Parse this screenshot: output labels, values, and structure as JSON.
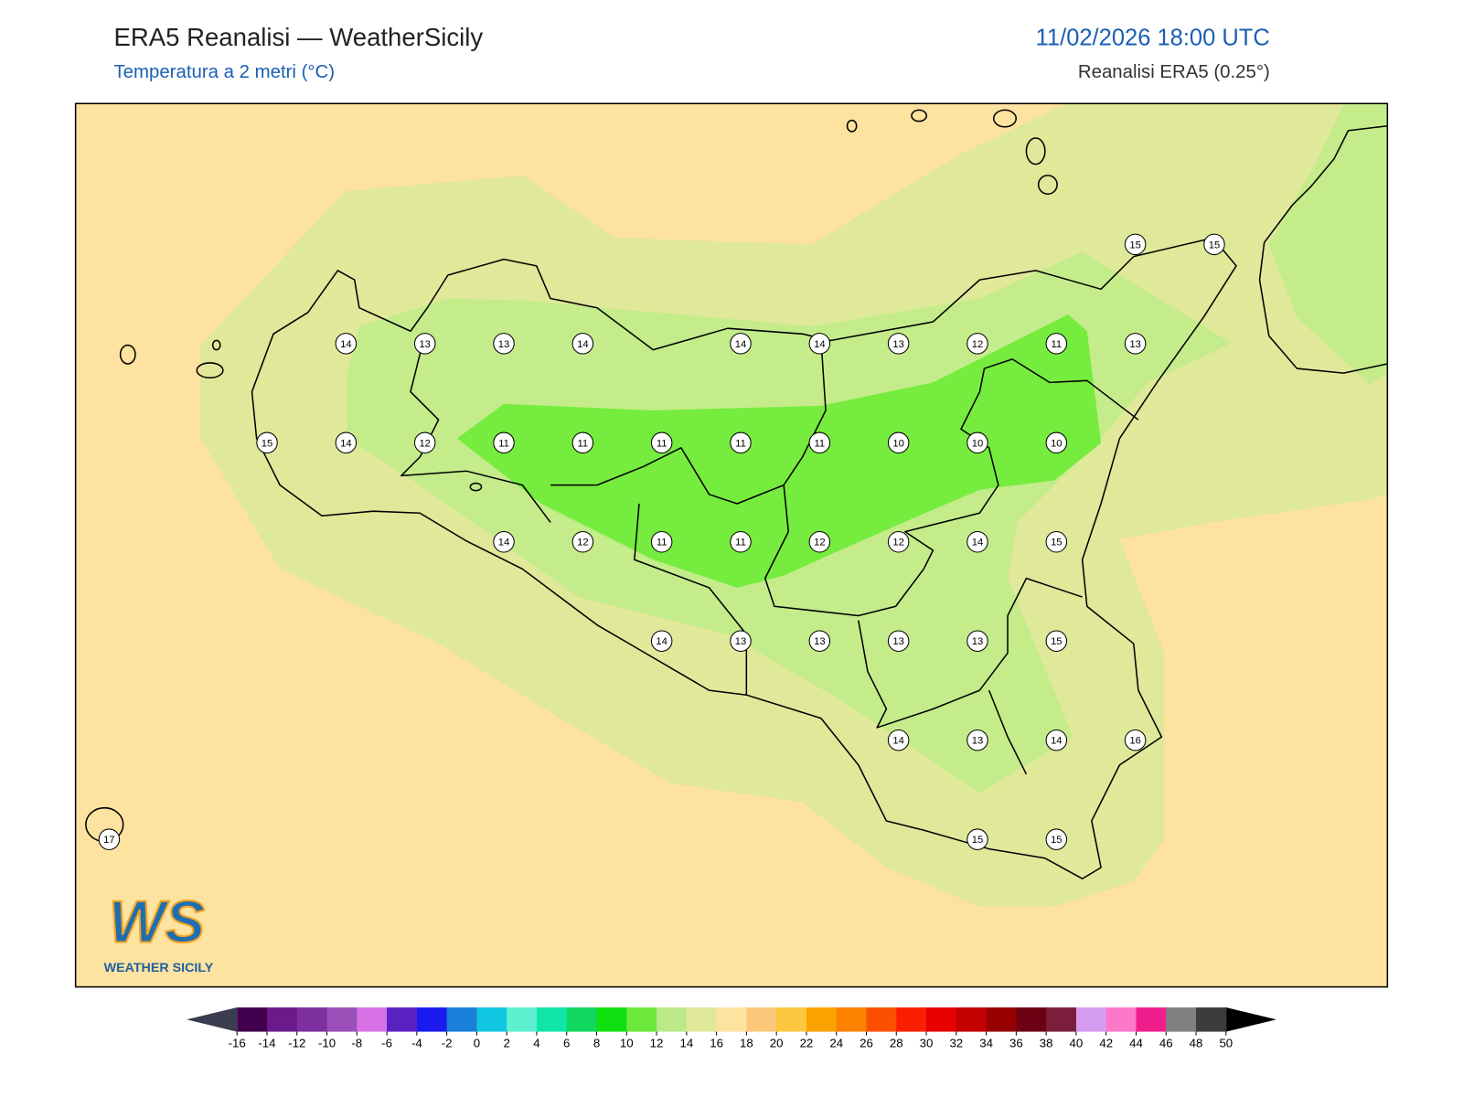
{
  "header": {
    "title": "ERA5 Reanalisi — WeatherSicily",
    "subtitle": "Temperatura a 2 metri (°C)",
    "timestamp": "11/02/2026 18:00 UTC",
    "source": "Reanalisi ERA5 (0.25°)"
  },
  "stations": {
    "rows": [
      [
        null,
        null,
        null,
        null,
        null,
        null,
        null,
        null,
        null,
        null,
        null,
        null,
        null,
        15,
        15
      ],
      [
        null,
        null,
        null,
        14,
        13,
        13,
        14,
        null,
        14,
        14,
        13,
        12,
        11,
        13,
        null
      ],
      [
        null,
        null,
        15,
        14,
        12,
        11,
        11,
        11,
        11,
        11,
        10,
        10,
        10,
        null,
        null
      ],
      [
        null,
        null,
        null,
        null,
        null,
        14,
        12,
        11,
        11,
        12,
        12,
        14,
        15,
        null,
        null
      ],
      [
        null,
        null,
        null,
        null,
        null,
        null,
        null,
        14,
        13,
        13,
        13,
        13,
        15,
        null,
        null
      ],
      [
        null,
        null,
        null,
        null,
        null,
        null,
        null,
        null,
        null,
        null,
        14,
        13,
        14,
        16,
        null
      ],
      [
        17,
        null,
        null,
        null,
        null,
        null,
        null,
        null,
        null,
        null,
        null,
        15,
        15,
        null,
        null
      ]
    ]
  },
  "colorbar": {
    "ticks": [
      -16,
      -14,
      -12,
      -10,
      -8,
      -6,
      -4,
      -2,
      0,
      2,
      4,
      6,
      8,
      10,
      12,
      14,
      16,
      18,
      20,
      22,
      24,
      26,
      28,
      30,
      32,
      34,
      36,
      38,
      40,
      42,
      44,
      46,
      48,
      50
    ],
    "colors": [
      "#43004f",
      "#6a1a8a",
      "#7e2fa0",
      "#9b4fb8",
      "#d672e6",
      "#5a22c0",
      "#1a1aee",
      "#1a7fd8",
      "#10c6e0",
      "#5ef0d0",
      "#10e6a8",
      "#10d860",
      "#10e010",
      "#6be83a",
      "#bde88a",
      "#e0e89a",
      "#fde2a0",
      "#fac878",
      "#fcc840",
      "#fca200",
      "#fc8200",
      "#fc5000",
      "#fc1e00",
      "#e60000",
      "#c40000",
      "#960000",
      "#6e0014",
      "#7a1e3c",
      "#d69cf0",
      "#fc78c8",
      "#f01e8c",
      "#808080",
      "#3c3c3c"
    ],
    "under_color": "#3c3c50",
    "over_color": "#000000"
  },
  "logo": {
    "mark": "WS",
    "name": "WEATHER SICILY"
  }
}
